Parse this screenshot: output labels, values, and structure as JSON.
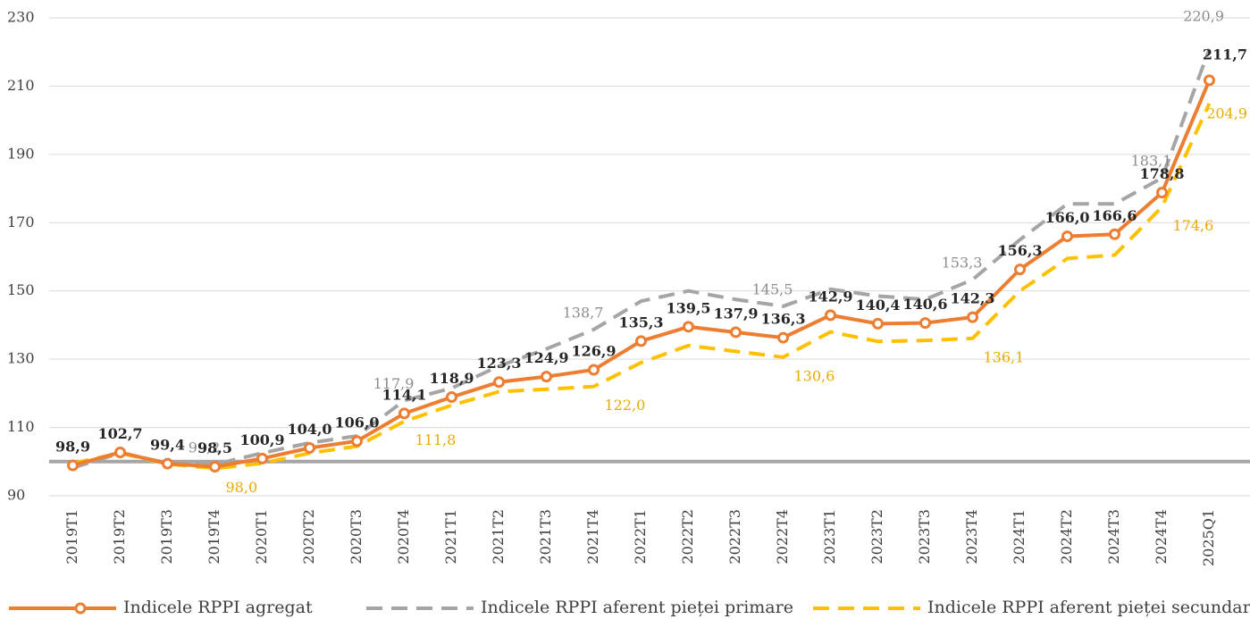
{
  "chart_data": {
    "type": "line",
    "categories": [
      "2019T1",
      "2019T2",
      "2019T3",
      "2019T4",
      "2020T1",
      "2020T2",
      "2020T3",
      "2020T4",
      "2021T1",
      "2021T2",
      "2021T3",
      "2021T4",
      "2022T1",
      "2022T2",
      "2022T3",
      "2022T4",
      "2023T1",
      "2023T2",
      "2023T3",
      "2023T4",
      "2024T1",
      "2024T2",
      "2024T3",
      "2024T4",
      "2025Q1"
    ],
    "series": [
      {
        "name": "Indicele RPPI agregat",
        "color": "#ed7d31",
        "style": "solid",
        "values": [
          98.9,
          102.7,
          99.4,
          98.5,
          100.9,
          104.0,
          106.0,
          114.1,
          118.9,
          123.3,
          124.9,
          126.9,
          135.3,
          139.5,
          137.9,
          136.3,
          142.9,
          140.4,
          140.6,
          142.3,
          156.3,
          166.0,
          166.6,
          178.8,
          211.7
        ],
        "value_labels": [
          "98,9",
          "102,7",
          "99,4",
          "98,5",
          "100,9",
          "104,0",
          "106,0",
          "114,1",
          "118,9",
          "123,3",
          "124,9",
          "126,9",
          "135,3",
          "139,5",
          "137,9",
          "136,3",
          "142,9",
          "140,4",
          "140,6",
          "142,3",
          "156,3",
          "166,0",
          "166,6",
          "178,8",
          "211,7"
        ]
      },
      {
        "name": "Indicele RPPI aferent pieței primare",
        "color": "#a5a5a5",
        "style": "dashed",
        "values": [
          98.2,
          102.5,
          99.6,
          99.2,
          102.5,
          105.5,
          107.5,
          117.9,
          121.5,
          128.0,
          133.0,
          138.7,
          147.0,
          150.0,
          147.5,
          145.5,
          150.5,
          148.5,
          147.5,
          153.3,
          165.0,
          175.5,
          175.5,
          183.1,
          220.9
        ],
        "value_labels": [
          null,
          null,
          null,
          "99,2",
          null,
          null,
          null,
          "117,9",
          null,
          null,
          null,
          "138,7",
          null,
          null,
          null,
          "145,5",
          null,
          null,
          null,
          "153,3",
          null,
          null,
          null,
          "183,1",
          "220,9"
        ]
      },
      {
        "name": "Indicele RPPI aferent pieței secundare",
        "color": "#ffc000",
        "style": "dashed",
        "values": [
          99.5,
          102.5,
          99.3,
          98.0,
          99.5,
          102.5,
          104.5,
          111.8,
          116.5,
          120.5,
          121.2,
          122.0,
          129.0,
          134.0,
          132.3,
          130.6,
          138.0,
          135.2,
          135.5,
          136.1,
          150.0,
          159.5,
          160.5,
          174.6,
          204.9
        ],
        "value_labels": [
          null,
          null,
          null,
          "98,0",
          null,
          null,
          null,
          "111,8",
          null,
          null,
          null,
          "122,0",
          null,
          null,
          null,
          "130,6",
          null,
          null,
          null,
          "136,1",
          null,
          null,
          null,
          "174,6",
          "204,9"
        ]
      }
    ],
    "ylim": [
      90,
      230
    ],
    "yticks": [
      90,
      110,
      130,
      150,
      170,
      190,
      210,
      230
    ],
    "grid": true,
    "reference_line": 100
  }
}
